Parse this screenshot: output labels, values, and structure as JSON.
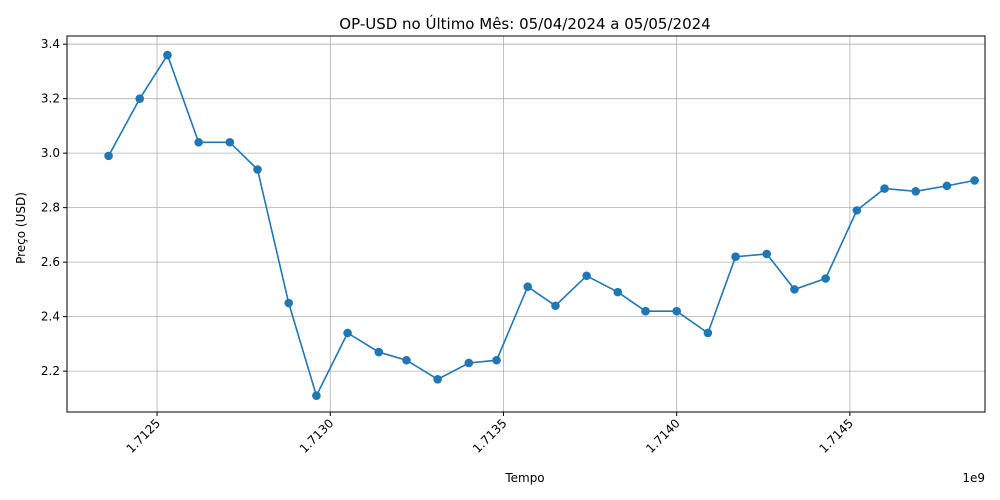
{
  "chart_data": {
    "type": "line",
    "title": "OP-USD no Último Mês: 05/04/2024 a 05/05/2024",
    "xlabel": "Tempo",
    "ylabel": "Preço (USD)",
    "x_offset_label": "1e9",
    "x_tick_values": [
      1.7125,
      1.713,
      1.7135,
      1.714,
      1.7145
    ],
    "x_tick_labels": [
      "1.7125",
      "1.7130",
      "1.7135",
      "1.7140",
      "1.7145"
    ],
    "y_tick_values": [
      2.2,
      2.4,
      2.6,
      2.8,
      3.0,
      3.2,
      3.4
    ],
    "y_tick_labels": [
      "2.2",
      "2.4",
      "2.6",
      "2.8",
      "3.0",
      "3.2",
      "3.4"
    ],
    "xlim": [
      1.71224,
      1.71489
    ],
    "ylim": [
      2.05,
      3.43
    ],
    "grid": true,
    "color": "#1f77b4",
    "series": [
      {
        "x": [
          1.71236,
          1.71245,
          1.71253,
          1.71262,
          1.71271,
          1.71279,
          1.71288,
          1.71296,
          1.71305,
          1.71314,
          1.71322,
          1.71331,
          1.7134,
          1.71348,
          1.71357,
          1.71365,
          1.71374,
          1.71383,
          1.71391,
          1.714,
          1.71409,
          1.71417,
          1.71426,
          1.71434,
          1.71443,
          1.71452,
          1.7146,
          1.71469,
          1.71478,
          1.71486
        ],
        "values": [
          2.99,
          3.2,
          3.36,
          3.04,
          3.04,
          2.94,
          2.45,
          2.11,
          2.34,
          2.27,
          2.24,
          2.17,
          2.23,
          2.24,
          2.51,
          2.44,
          2.55,
          2.49,
          2.42,
          2.42,
          2.34,
          2.62,
          2.63,
          2.5,
          2.54,
          2.79,
          2.87,
          2.86,
          2.88,
          2.9
        ]
      }
    ]
  }
}
